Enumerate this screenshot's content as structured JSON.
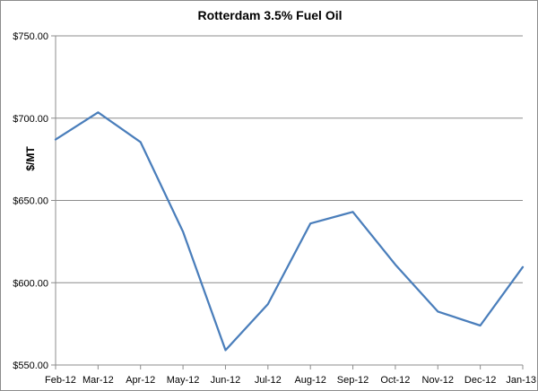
{
  "chart_data": {
    "type": "line",
    "title": "Rotterdam 3.5% Fuel Oil",
    "xlabel": "",
    "ylabel": "$/MT",
    "categories": [
      "Feb-12",
      "Mar-12",
      "Apr-12",
      "May-12",
      "Jun-12",
      "Jul-12",
      "Aug-12",
      "Sep-12",
      "Oct-12",
      "Nov-12",
      "Dec-12",
      "Jan-13"
    ],
    "series": [
      {
        "name": "",
        "values": [
          687,
          703.5,
          685.5,
          631,
          559,
          587,
          636,
          643,
          611,
          582.5,
          574,
          609.5
        ],
        "color": "#4a7ebb"
      }
    ],
    "ylim": [
      550,
      750
    ],
    "y_ticks": [
      550,
      600,
      650,
      700,
      750
    ],
    "y_tick_labels": [
      "$550.00",
      "$600.00",
      "$650.00",
      "$700.00",
      "$750.00"
    ],
    "grid": true,
    "grid_color": "#8c8c8c",
    "axis_color": "#8c8c8c",
    "legend": "none"
  }
}
